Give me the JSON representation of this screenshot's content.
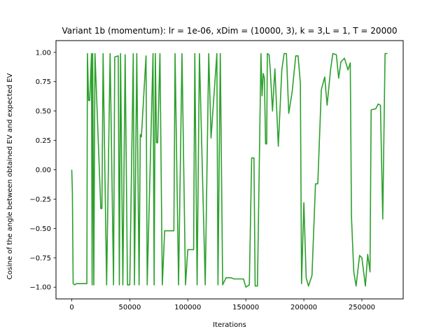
{
  "chart_data": {
    "type": "line",
    "title": "Variant 1b (momentum): lr = 1e-06, xDim = (10000, 3), k = 3,L = 1, T = 20000",
    "xlabel": "Iterations",
    "ylabel": "Cosine of the angle between obtained EV and expected EV",
    "xlim": [
      -13600,
      285600
    ],
    "ylim": [
      -1.1,
      1.1
    ],
    "x_ticks": [
      0,
      50000,
      100000,
      150000,
      200000,
      250000
    ],
    "x_tick_labels": [
      "0",
      "50000",
      "100000",
      "150000",
      "200000",
      "250000"
    ],
    "y_ticks": [
      -1.0,
      -0.75,
      -0.5,
      -0.25,
      0.0,
      0.25,
      0.5,
      0.75,
      1.0
    ],
    "y_tick_labels": [
      "−1.00",
      "−0.75",
      "−0.50",
      "−0.25",
      "0.00",
      "0.25",
      "0.50",
      "0.75",
      "1.00"
    ],
    "grid": false,
    "series": [
      {
        "color": "#2ca02c",
        "x": [
          0,
          500,
          1200,
          2500,
          4000,
          13000,
          13500,
          14500,
          15500,
          17000,
          17500,
          18000,
          19000,
          20000,
          25000,
          26000,
          27000,
          30000,
          33000,
          36000,
          37000,
          40000,
          41000,
          42000,
          44000,
          46000,
          48000,
          50000,
          53000,
          54000,
          56000,
          58000,
          59000,
          60000,
          64000,
          65000,
          70000,
          71000,
          72000,
          73000,
          74000,
          76000,
          78000,
          80000,
          88000,
          89000,
          92000,
          95000,
          98000,
          100000,
          105000,
          106000,
          108000,
          110000,
          115000,
          118000,
          120000,
          125000,
          126000,
          128000,
          130000,
          133000,
          135000,
          137000,
          140000,
          148000,
          150000,
          153000,
          155000,
          157000,
          158000,
          160000,
          163000,
          164000,
          165000,
          166000,
          167000,
          168000,
          168500,
          170000,
          171000,
          173000,
          175000,
          178000,
          181000,
          183000,
          185000,
          187000,
          190000,
          193000,
          195000,
          197000,
          198000,
          200000,
          202000,
          204000,
          207000,
          210000,
          212000,
          215000,
          218000,
          220000,
          223000,
          225000,
          228000,
          230000,
          232000,
          235000,
          238000,
          240000,
          241000,
          243000,
          245000,
          248000,
          250000,
          253000,
          255000,
          257000,
          258000,
          262000,
          264000,
          266000,
          268000,
          270000,
          271000,
          272000
        ],
        "y": [
          0.0,
          -0.18,
          -0.97,
          -0.98,
          -0.97,
          -0.97,
          0.99,
          0.59,
          0.59,
          0.99,
          -0.98,
          0.99,
          -0.98,
          0.99,
          -0.33,
          -0.33,
          0.99,
          -0.98,
          0.99,
          -0.98,
          0.96,
          0.97,
          -0.98,
          0.99,
          -0.98,
          0.98,
          -0.98,
          -0.98,
          0.99,
          -0.98,
          0.99,
          -0.98,
          0.3,
          0.28,
          0.97,
          -0.98,
          0.99,
          -0.98,
          0.99,
          0.23,
          0.23,
          0.99,
          -0.98,
          -0.52,
          -0.52,
          0.99,
          -0.98,
          0.99,
          -0.98,
          -0.68,
          -0.68,
          0.99,
          -0.98,
          0.99,
          -0.98,
          0.99,
          0.27,
          0.99,
          -0.98,
          0.99,
          -0.98,
          -0.92,
          -0.92,
          -0.92,
          -0.93,
          -0.93,
          -1.0,
          -0.98,
          0.1,
          0.1,
          -0.99,
          -0.99,
          0.99,
          0.63,
          0.82,
          0.78,
          0.22,
          0.22,
          0.99,
          0.98,
          0.86,
          0.5,
          0.86,
          0.2,
          0.85,
          0.99,
          0.99,
          0.48,
          0.67,
          0.97,
          0.97,
          0.74,
          -0.97,
          -0.28,
          -0.92,
          -0.99,
          -0.9,
          -0.12,
          -0.12,
          0.68,
          0.79,
          0.55,
          0.85,
          0.99,
          0.98,
          0.78,
          0.92,
          0.95,
          0.85,
          0.91,
          -0.4,
          -0.87,
          -0.99,
          -0.73,
          -0.75,
          -0.99,
          -0.72,
          -0.87,
          0.51,
          0.52,
          0.56,
          0.55,
          -0.42,
          0.99,
          0.99,
          0.99
        ]
      }
    ]
  }
}
